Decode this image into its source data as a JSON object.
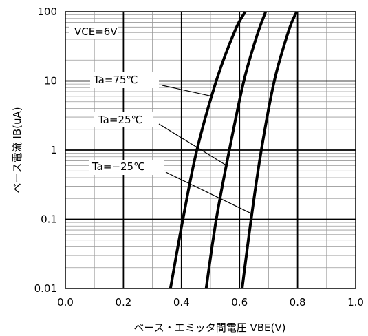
{
  "chart_data": {
    "type": "line",
    "xlabel": "ベース・エミッタ間電圧 VBE(V)",
    "ylabel": "ベース電流 IB(uA)",
    "xlim": [
      0.0,
      1.0
    ],
    "ylim": [
      0.01,
      100
    ],
    "yscale": "log",
    "xticks": [
      "0.0",
      "0.2",
      "0.4",
      "0.6",
      "0.8",
      "1.0"
    ],
    "yticks": [
      "0.01",
      "0.1",
      "1",
      "10",
      "100"
    ],
    "grid": true,
    "condition": "VCE=6V",
    "series": [
      {
        "name": "Ta=75°C",
        "points": [
          [
            0.362,
            0.01
          ],
          [
            0.405,
            0.1
          ],
          [
            0.453,
            1
          ],
          [
            0.52,
            10
          ],
          [
            0.585,
            54
          ],
          [
            0.62,
            100
          ]
        ]
      },
      {
        "name": "Ta=25°C",
        "points": [
          [
            0.485,
            0.01
          ],
          [
            0.52,
            0.1
          ],
          [
            0.565,
            1
          ],
          [
            0.615,
            10
          ],
          [
            0.66,
            45
          ],
          [
            0.69,
            100
          ]
        ]
      },
      {
        "name": "Ta=-25°C",
        "points": [
          [
            0.609,
            0.01
          ],
          [
            0.64,
            0.1
          ],
          [
            0.675,
            1
          ],
          [
            0.72,
            10
          ],
          [
            0.77,
            54
          ],
          [
            0.797,
            100
          ]
        ]
      }
    ],
    "annotations": [
      {
        "text": "Ta=75℃",
        "series": 0
      },
      {
        "text": "Ta=25℃",
        "series": 1
      },
      {
        "text": "Ta=−25℃",
        "series": 2
      }
    ]
  }
}
